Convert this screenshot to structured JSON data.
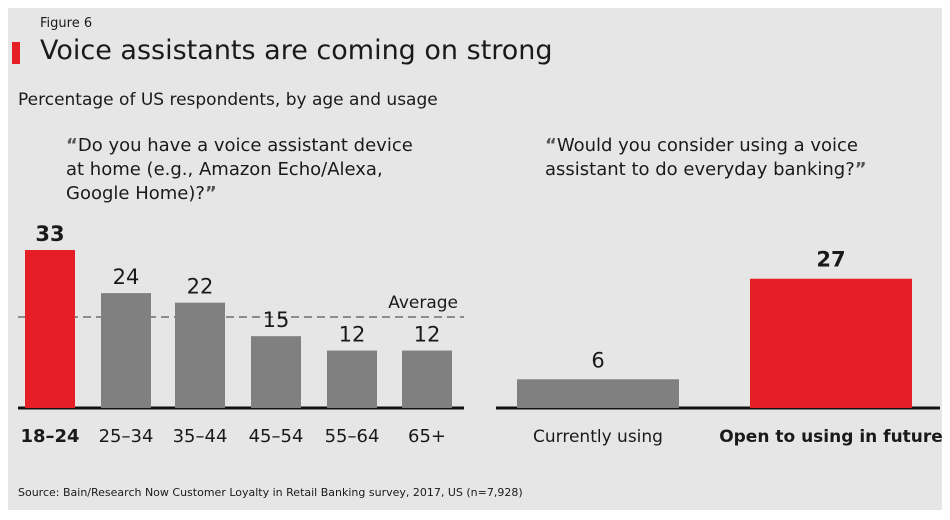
{
  "figure_label": "Figure 6",
  "title": "Voice assistants are coming on strong",
  "subtitle": "Percentage of US respondents, by age and usage",
  "quote_open": "“",
  "quote_close": "”",
  "source": "Source: Bain/Research Now Customer Loyalty in Retail Banking survey, 2017, US (n=7,928)",
  "colors": {
    "highlight": "#e51f25",
    "base": "#808080",
    "background": "#e6e6e6"
  },
  "chart_data": [
    {
      "type": "bar",
      "title": "Do you have a voice assistant device at home (e.g., Amazon Echo/Alexa, Google Home)?",
      "categories": [
        "18–24",
        "25–34",
        "35–44",
        "45–54",
        "55–64",
        "65+"
      ],
      "values": [
        33,
        24,
        22,
        15,
        12,
        12
      ],
      "highlight": [
        true,
        false,
        false,
        false,
        false,
        false
      ],
      "reference_line": {
        "label": "Average",
        "value": 19
      },
      "ylim": [
        0,
        33
      ]
    },
    {
      "type": "bar",
      "title": "Would you consider using a voice assistant to do everyday banking?",
      "categories": [
        "Currently using",
        "Open to using in future"
      ],
      "values": [
        6,
        27
      ],
      "highlight": [
        false,
        true
      ],
      "ylim": [
        0,
        33
      ]
    }
  ]
}
